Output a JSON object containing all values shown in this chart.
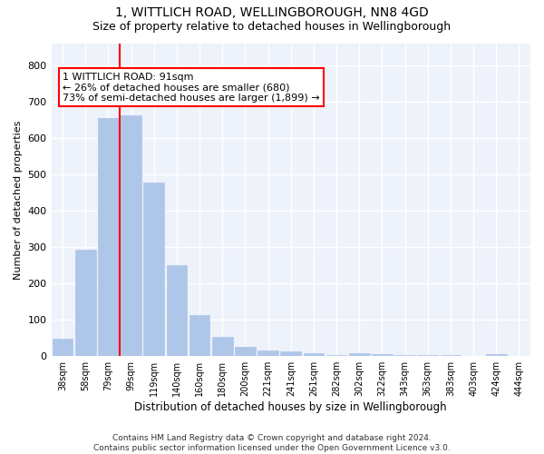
{
  "title": "1, WITTLICH ROAD, WELLINGBOROUGH, NN8 4GD",
  "subtitle": "Size of property relative to detached houses in Wellingborough",
  "xlabel": "Distribution of detached houses by size in Wellingborough",
  "ylabel": "Number of detached properties",
  "categories": [
    "38sqm",
    "58sqm",
    "79sqm",
    "99sqm",
    "119sqm",
    "140sqm",
    "160sqm",
    "180sqm",
    "200sqm",
    "221sqm",
    "241sqm",
    "261sqm",
    "282sqm",
    "302sqm",
    "322sqm",
    "343sqm",
    "363sqm",
    "383sqm",
    "403sqm",
    "424sqm",
    "444sqm"
  ],
  "values": [
    47,
    293,
    653,
    661,
    478,
    249,
    113,
    52,
    25,
    16,
    13,
    8,
    4,
    7,
    5,
    4,
    3,
    2,
    1,
    6,
    1
  ],
  "bar_color": "#aec6e8",
  "bar_edgecolor": "#aec6e8",
  "vline_x_index": 2.5,
  "vline_color": "red",
  "annotation_text": "1 WITTLICH ROAD: 91sqm\n← 26% of detached houses are smaller (680)\n73% of semi-detached houses are larger (1,899) →",
  "annotation_box_edgecolor": "red",
  "annotation_box_facecolor": "white",
  "ylim": [
    0,
    860
  ],
  "yticks": [
    0,
    100,
    200,
    300,
    400,
    500,
    600,
    700,
    800
  ],
  "background_color": "#eef2fb",
  "grid_color": "white",
  "footer": "Contains HM Land Registry data © Crown copyright and database right 2024.\nContains public sector information licensed under the Open Government Licence v3.0.",
  "title_fontsize": 10,
  "subtitle_fontsize": 9,
  "xlabel_fontsize": 8.5,
  "ylabel_fontsize": 8,
  "footer_fontsize": 6.5,
  "annot_fontsize": 8
}
